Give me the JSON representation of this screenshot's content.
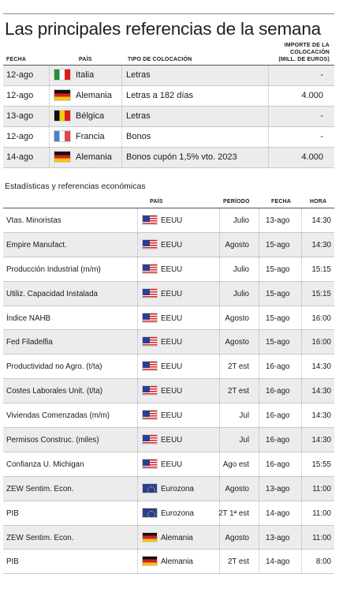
{
  "title": "Las principales referencias de la semana",
  "table1": {
    "headers": {
      "fecha": "FECHA",
      "pais": "PAÍS",
      "tipo": "TIPO DE COLOCACIÓN",
      "importe_l1": "IMPORTE DE LA",
      "importe_l2": "COLOCACIÓN",
      "importe_l3": "(MILL. DE EUROS)"
    },
    "rows": [
      {
        "fecha": "12-ago",
        "flag": "italy-flag-icon",
        "pais": "Italia",
        "tipo": "Letras",
        "importe": "-"
      },
      {
        "fecha": "12-ago",
        "flag": "germany-flag-icon",
        "pais": "Alemania",
        "tipo": "Letras a 182 días",
        "importe": "4.000"
      },
      {
        "fecha": "13-ago",
        "flag": "belgium-flag-icon",
        "pais": "Bélgica",
        "tipo": "Letras",
        "importe": "-"
      },
      {
        "fecha": "12-ago",
        "flag": "france-flag-icon",
        "pais": "Francia",
        "tipo": "Bonos",
        "importe": "-"
      },
      {
        "fecha": "14-ago",
        "flag": "germany-flag-icon",
        "pais": "Alemania",
        "tipo": "Bonos cupón 1,5% vto. 2023",
        "importe": "4.000"
      }
    ]
  },
  "subtitle": "Estadísticas y referencias económicas",
  "table2": {
    "headers": {
      "pais": "PAÍS",
      "periodo": "PERÍODO",
      "fecha": "FECHA",
      "hora": "HORA"
    },
    "rows": [
      {
        "indicador": "Vtas. Minoristas",
        "flag": "usa-flag-icon",
        "pais": "EEUU",
        "periodo": "Julio",
        "fecha": "13-ago",
        "hora": "14:30"
      },
      {
        "indicador": "Empire Manufact.",
        "flag": "usa-flag-icon",
        "pais": "EEUU",
        "periodo": "Agosto",
        "fecha": "15-ago",
        "hora": "14:30"
      },
      {
        "indicador": "Producción Industrial (m/m)",
        "flag": "usa-flag-icon",
        "pais": "EEUU",
        "periodo": "Julio",
        "fecha": "15-ago",
        "hora": "15:15"
      },
      {
        "indicador": "Utiliz. Capacidad Instalada",
        "flag": "usa-flag-icon",
        "pais": "EEUU",
        "periodo": "Julio",
        "fecha": "15-ago",
        "hora": "15:15"
      },
      {
        "indicador": "Índice NAHB",
        "flag": "usa-flag-icon",
        "pais": "EEUU",
        "periodo": "Agosto",
        "fecha": "15-ago",
        "hora": "16:00"
      },
      {
        "indicador": "Fed Filadelfia",
        "flag": "usa-flag-icon",
        "pais": "EEUU",
        "periodo": "Agosto",
        "fecha": "15-ago",
        "hora": "16:00"
      },
      {
        "indicador": "Productividad no Agro. (t/ta)",
        "flag": "usa-flag-icon",
        "pais": "EEUU",
        "periodo": "2T est",
        "fecha": "16-ago",
        "hora": "14:30"
      },
      {
        "indicador": "Costes Laborales Unit. (t/ta)",
        "flag": "usa-flag-icon",
        "pais": "EEUU",
        "periodo": "2T est",
        "fecha": "16-ago",
        "hora": "14:30"
      },
      {
        "indicador": "Viviendas Comenzadas (m/m)",
        "flag": "usa-flag-icon",
        "pais": "EEUU",
        "periodo": "Jul",
        "fecha": "16-ago",
        "hora": "14:30"
      },
      {
        "indicador": "Permisos Construc. (miles)",
        "flag": "usa-flag-icon",
        "pais": "EEUU",
        "periodo": "Jul",
        "fecha": "16-ago",
        "hora": "14:30"
      },
      {
        "indicador": "Confianza U. Michigan",
        "flag": "usa-flag-icon",
        "pais": "EEUU",
        "periodo": "Ago est",
        "fecha": "16-ago",
        "hora": "15:55"
      },
      {
        "indicador": "ZEW Sentim. Econ.",
        "flag": "eu-flag-icon",
        "pais": "Eurozona",
        "periodo": "Agosto",
        "fecha": "13-ago",
        "hora": "11:00"
      },
      {
        "indicador": "PIB",
        "flag": "eu-flag-icon",
        "pais": "Eurozona",
        "periodo": "2T 1ª est",
        "fecha": "14-ago",
        "hora": "11:00"
      },
      {
        "indicador": "ZEW Sentim. Econ.",
        "flag": "germany-flag-icon",
        "pais": "Alemania",
        "periodo": "Agosto",
        "fecha": "13-ago",
        "hora": "11:00"
      },
      {
        "indicador": "PIB",
        "flag": "germany-flag-icon",
        "pais": "Alemania",
        "periodo": "2T est",
        "fecha": "14-ago",
        "hora": "8:00"
      }
    ]
  }
}
